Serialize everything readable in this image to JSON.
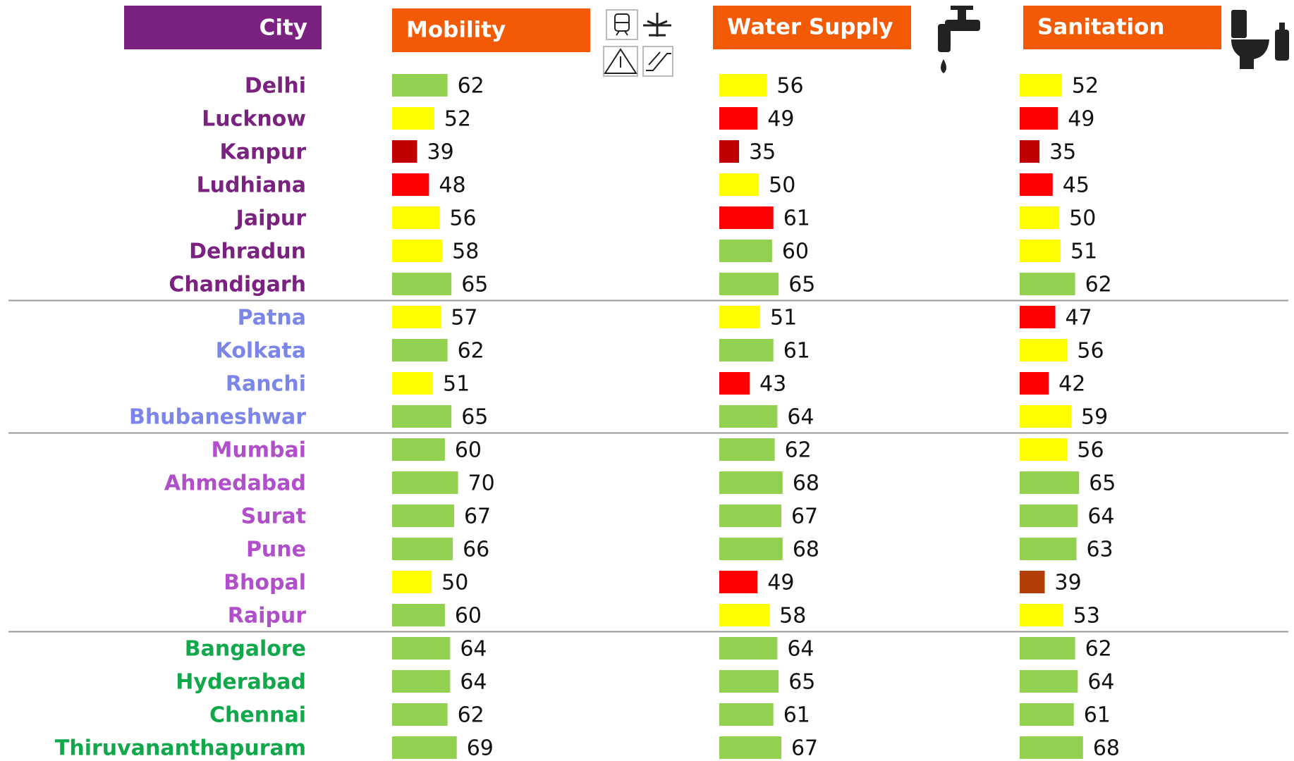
{
  "chart_data": {
    "type": "bar",
    "category_label": "City",
    "categories": [
      "Delhi",
      "Lucknow",
      "Kanpur",
      "Ludhiana",
      "Jaipur",
      "Dehradun",
      "Chandigarh",
      "Patna",
      "Kolkata",
      "Ranchi",
      "Bhubaneshwar",
      "Mumbai",
      "Ahmedabad",
      "Surat",
      "Pune",
      "Bhopal",
      "Raipur",
      "Bangalore",
      "Hyderabad",
      "Chennai",
      "Thiruvananthapuram"
    ],
    "category_colors": [
      "#7b2281",
      "#7b2281",
      "#7b2281",
      "#7b2281",
      "#7b2281",
      "#7b2281",
      "#7b2281",
      "#7b86e8",
      "#7b86e8",
      "#7b86e8",
      "#7b86e8",
      "#b04fc9",
      "#b04fc9",
      "#b04fc9",
      "#b04fc9",
      "#b04fc9",
      "#b04fc9",
      "#10a84a",
      "#10a84a",
      "#10a84a",
      "#10a84a"
    ],
    "xlim": [
      20,
      90
    ],
    "series": [
      {
        "name": "Mobility",
        "values": [
          62,
          52,
          39,
          48,
          56,
          58,
          65,
          57,
          62,
          51,
          65,
          60,
          70,
          67,
          66,
          50,
          60,
          64,
          64,
          62,
          69
        ],
        "colors": [
          "#92d050",
          "#ffff00",
          "#c00000",
          "#ff0000",
          "#ffff00",
          "#ffff00",
          "#92d050",
          "#ffff00",
          "#92d050",
          "#ffff00",
          "#92d050",
          "#92d050",
          "#92d050",
          "#92d050",
          "#92d050",
          "#ffff00",
          "#92d050",
          "#92d050",
          "#92d050",
          "#92d050",
          "#92d050"
        ]
      },
      {
        "name": "Water Supply",
        "values": [
          56,
          49,
          35,
          50,
          61,
          60,
          65,
          51,
          61,
          43,
          64,
          62,
          68,
          67,
          68,
          49,
          58,
          64,
          65,
          61,
          67
        ],
        "colors": [
          "#ffff00",
          "#ff0000",
          "#c00000",
          "#ffff00",
          "#ff0000",
          "#92d050",
          "#92d050",
          "#ffff00",
          "#92d050",
          "#ff0000",
          "#92d050",
          "#92d050",
          "#92d050",
          "#92d050",
          "#92d050",
          "#ff0000",
          "#ffff00",
          "#92d050",
          "#92d050",
          "#92d050",
          "#92d050"
        ]
      },
      {
        "name": "Sanitation",
        "values": [
          52,
          49,
          35,
          45,
          50,
          51,
          62,
          47,
          56,
          42,
          59,
          56,
          65,
          64,
          63,
          39,
          53,
          62,
          64,
          61,
          68
        ],
        "colors": [
          "#ffff00",
          "#ff0000",
          "#c00000",
          "#ff0000",
          "#ffff00",
          "#ffff00",
          "#92d050",
          "#ff0000",
          "#ffff00",
          "#ff0000",
          "#ffff00",
          "#ffff00",
          "#92d050",
          "#92d050",
          "#92d050",
          "#b23f0a",
          "#ffff00",
          "#92d050",
          "#92d050",
          "#92d050",
          "#92d050"
        ]
      }
    ]
  }
}
